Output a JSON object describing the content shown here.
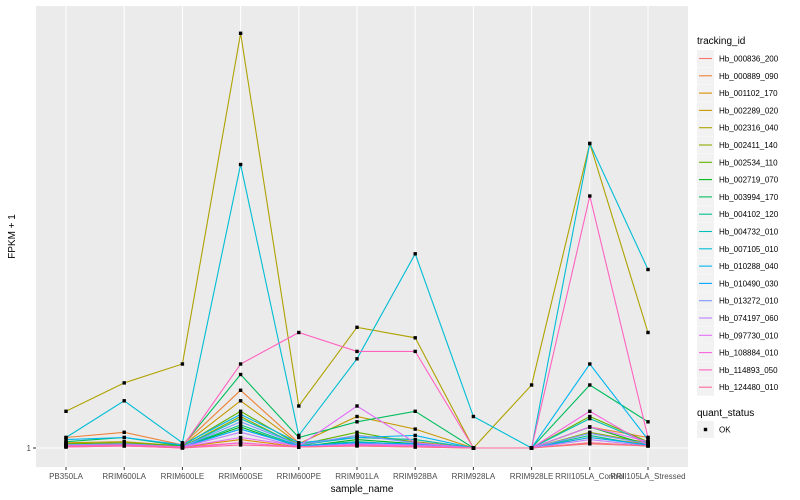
{
  "chart_data": {
    "type": "line",
    "xlabel": "sample_name",
    "ylabel": "FPKM + 1",
    "y_ticks": [
      "1"
    ],
    "categories": [
      "PB350LA",
      "RRIM600LA",
      "RRIM600LE",
      "RRIM600SE",
      "RRIM600PE",
      "RRIM901LA",
      "RRIM928BA",
      "RRIM928LA",
      "RRIM928LE",
      "RRII105LA_Control",
      "RRII105LA_Stressed"
    ],
    "grid": true,
    "legend_position": "right",
    "color_legend": {
      "title": "tracking_id",
      "entries": [
        "Hb_000836_200",
        "Hb_000889_090",
        "Hb_001102_170",
        "Hb_002289_020",
        "Hb_002316_040",
        "Hb_002411_140",
        "Hb_002534_110",
        "Hb_002719_070",
        "Hb_003994_170",
        "Hb_004102_120",
        "Hb_004732_010",
        "Hb_007105_010",
        "Hb_010288_040",
        "Hb_010490_030",
        "Hb_013272_010",
        "Hb_074197_060",
        "Hb_097730_010",
        "Hb_108884_010",
        "Hb_114893_050",
        "Hb_124480_010"
      ]
    },
    "shape_legend": {
      "title": "quant_status",
      "entries": [
        "OK"
      ]
    },
    "series": [
      {
        "name": "Hb_000836_200",
        "color": "#F8766D",
        "values": [
          1.05,
          1.02,
          1.01,
          1.05,
          1.01,
          1.03,
          1.02,
          1.0,
          1.0,
          1.04,
          1.02
        ]
      },
      {
        "name": "Hb_000889_090",
        "color": "#EC8239",
        "values": [
          1.1,
          1.15,
          1.03,
          1.55,
          1.05,
          1.1,
          1.08,
          1.0,
          1.0,
          1.2,
          1.1
        ]
      },
      {
        "name": "Hb_001102_170",
        "color": "#DB8E00",
        "values": [
          1.02,
          1.03,
          1.01,
          1.08,
          1.01,
          1.02,
          1.01,
          1.0,
          1.0,
          1.05,
          1.02
        ]
      },
      {
        "name": "Hb_002289_020",
        "color": "#C79800",
        "values": [
          1.05,
          1.06,
          1.02,
          1.45,
          1.04,
          1.3,
          1.18,
          1.0,
          1.0,
          1.1,
          1.04
        ]
      },
      {
        "name": "Hb_002316_040",
        "color": "#AEA200",
        "values": [
          1.35,
          1.62,
          1.8,
          4.95,
          1.4,
          2.15,
          2.05,
          1.0,
          1.6,
          3.9,
          2.1
        ]
      },
      {
        "name": "Hb_002411_140",
        "color": "#8FAA00",
        "values": [
          1.03,
          1.04,
          1.01,
          1.3,
          1.02,
          1.12,
          1.06,
          1.0,
          1.0,
          1.15,
          1.05
        ]
      },
      {
        "name": "Hb_002534_110",
        "color": "#64B200",
        "values": [
          1.04,
          1.05,
          1.02,
          1.35,
          1.03,
          1.15,
          1.05,
          1.0,
          1.0,
          1.3,
          1.06
        ]
      },
      {
        "name": "Hb_002719_070",
        "color": "#00B81B",
        "values": [
          1.02,
          1.03,
          1.01,
          1.2,
          1.01,
          1.08,
          1.04,
          1.0,
          1.0,
          1.2,
          1.03
        ]
      },
      {
        "name": "Hb_003994_170",
        "color": "#00BD5C",
        "values": [
          1.06,
          1.1,
          1.02,
          1.7,
          1.1,
          1.25,
          1.35,
          1.0,
          1.0,
          1.6,
          1.25
        ]
      },
      {
        "name": "Hb_004102_120",
        "color": "#00C08E",
        "values": [
          1.02,
          1.03,
          1.01,
          1.22,
          1.02,
          1.06,
          1.03,
          1.0,
          1.0,
          1.12,
          1.02
        ]
      },
      {
        "name": "Hb_004732_010",
        "color": "#00C1B7",
        "values": [
          1.03,
          1.04,
          1.01,
          1.28,
          1.03,
          1.1,
          1.08,
          1.0,
          1.0,
          1.28,
          1.05
        ]
      },
      {
        "name": "Hb_007105_010",
        "color": "#00BDD4",
        "values": [
          1.1,
          1.45,
          1.05,
          3.7,
          1.12,
          1.85,
          2.85,
          1.3,
          1.0,
          3.9,
          2.7
        ]
      },
      {
        "name": "Hb_010288_040",
        "color": "#00B5EE",
        "values": [
          1.08,
          1.1,
          1.03,
          1.32,
          1.05,
          1.1,
          1.12,
          1.0,
          1.0,
          1.8,
          1.08
        ]
      },
      {
        "name": "Hb_010490_030",
        "color": "#00A7FF",
        "values": [
          1.02,
          1.03,
          1.01,
          1.18,
          1.02,
          1.05,
          1.04,
          1.0,
          1.0,
          1.1,
          1.03
        ]
      },
      {
        "name": "Hb_013272_010",
        "color": "#7F96FF",
        "values": [
          1.03,
          1.04,
          1.01,
          1.25,
          1.03,
          1.12,
          1.05,
          1.0,
          1.0,
          1.14,
          1.04
        ]
      },
      {
        "name": "Hb_074197_060",
        "color": "#BC81FF",
        "values": [
          1.02,
          1.02,
          1.01,
          1.15,
          1.01,
          1.04,
          1.03,
          1.0,
          1.0,
          1.08,
          1.02
        ]
      },
      {
        "name": "Hb_097730_010",
        "color": "#E26EF7",
        "values": [
          1.02,
          1.03,
          1.01,
          1.1,
          1.02,
          1.4,
          1.05,
          1.0,
          1.0,
          1.2,
          1.06
        ]
      },
      {
        "name": "Hb_108884_010",
        "color": "#F863DF",
        "values": [
          1.01,
          1.02,
          1.0,
          1.05,
          1.01,
          1.03,
          1.02,
          1.0,
          1.0,
          1.35,
          1.03
        ]
      },
      {
        "name": "Hb_114893_050",
        "color": "#FF62BF",
        "values": [
          1.02,
          1.03,
          1.01,
          1.8,
          2.1,
          1.92,
          1.92,
          1.0,
          1.0,
          3.4,
          1.1
        ]
      },
      {
        "name": "Hb_124480_010",
        "color": "#FF6A9A",
        "values": [
          1.01,
          1.02,
          1.0,
          1.03,
          1.01,
          1.02,
          1.01,
          1.0,
          1.0,
          1.05,
          1.02
        ]
      }
    ]
  }
}
